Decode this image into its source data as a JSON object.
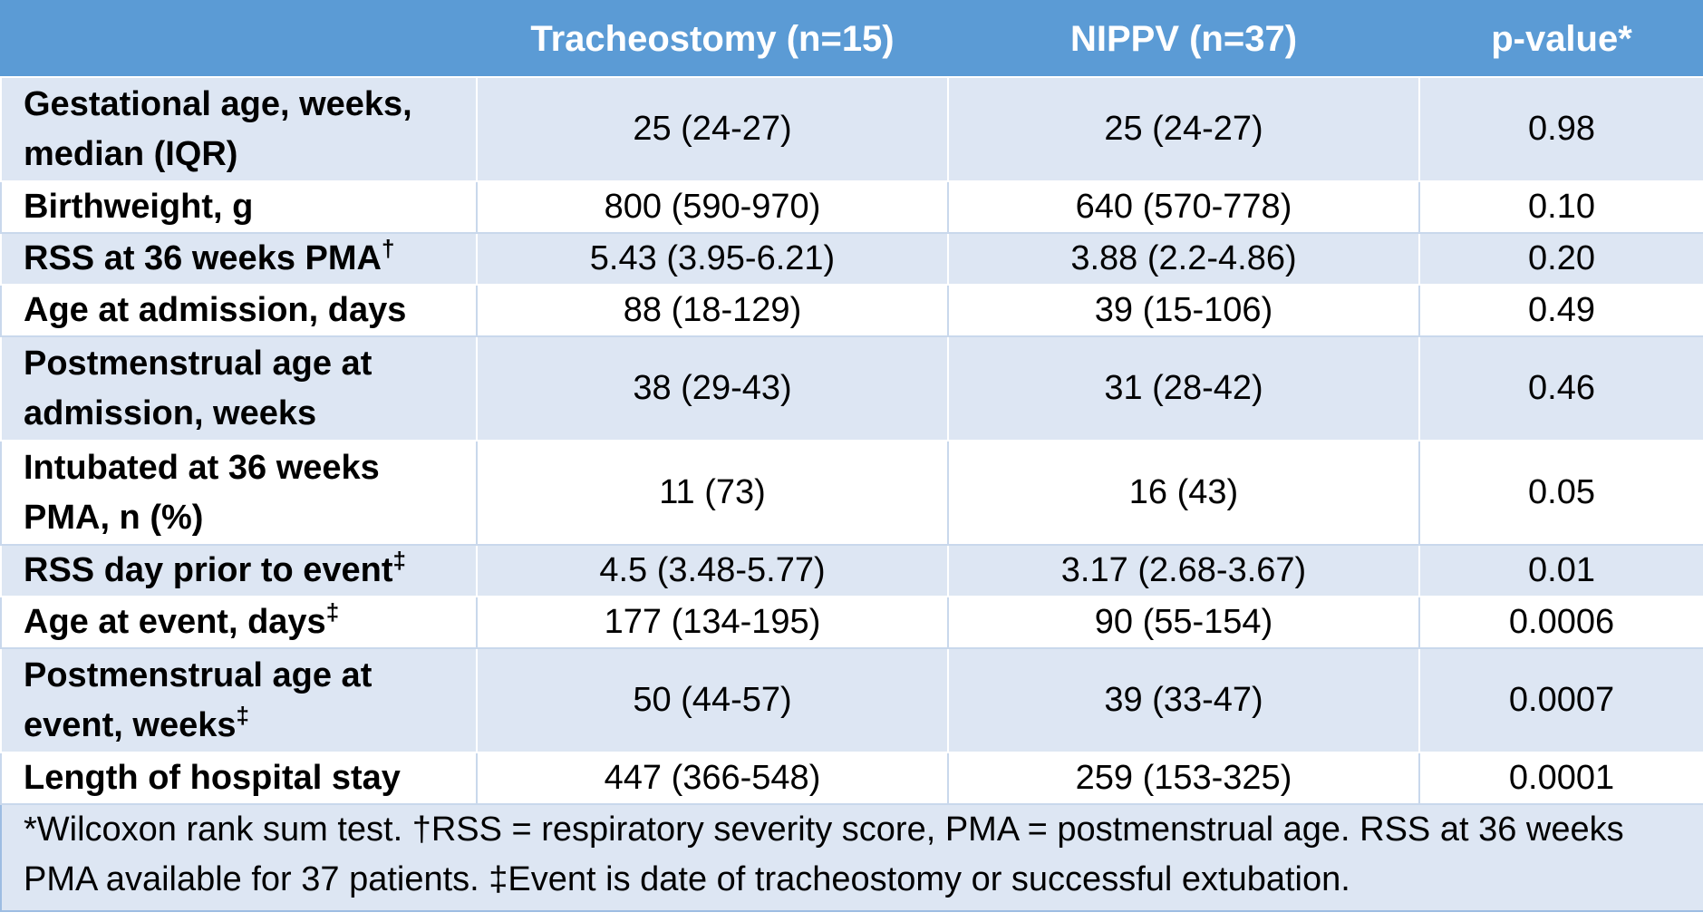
{
  "header": {
    "col0": "",
    "col1": "Tracheostomy (n=15)",
    "col2": "NIPPV (n=37)",
    "col3": "p-value*"
  },
  "rows": [
    {
      "label": "Gestational age, weeks, median (IQR)",
      "sup": "",
      "trach": "25 (24-27)",
      "nippv": "25 (24-27)",
      "p": "0.98"
    },
    {
      "label": "Birthweight, g",
      "sup": "",
      "trach": "800 (590-970)",
      "nippv": "640 (570-778)",
      "p": "0.10"
    },
    {
      "label": "RSS at 36 weeks PMA",
      "sup": "†",
      "trach": "5.43 (3.95-6.21)",
      "nippv": "3.88 (2.2-4.86)",
      "p": "0.20"
    },
    {
      "label": "Age at admission, days",
      "sup": "",
      "trach": "88 (18-129)",
      "nippv": "39 (15-106)",
      "p": "0.49"
    },
    {
      "label": "Postmenstrual age at admission, weeks",
      "sup": "",
      "trach": "38 (29-43)",
      "nippv": "31 (28-42)",
      "p": "0.46"
    },
    {
      "label": "Intubated at 36 weeks PMA, n (%)",
      "sup": "",
      "trach": "11 (73)",
      "nippv": "16 (43)",
      "p": "0.05"
    },
    {
      "label": "RSS day prior to event",
      "sup": "‡",
      "trach": "4.5 (3.48-5.77)",
      "nippv": "3.17 (2.68-3.67)",
      "p": "0.01"
    },
    {
      "label": "Age at event, days",
      "sup": "‡",
      "trach": "177 (134-195)",
      "nippv": "90 (55-154)",
      "p": "0.0006"
    },
    {
      "label": "Postmenstrual age at event, weeks",
      "sup": "‡",
      "trach": "50 (44-57)",
      "nippv": "39 (33-47)",
      "p": "0.0007"
    },
    {
      "label": "Length of hospital stay",
      "sup": "",
      "trach": "447 (366-548)",
      "nippv": "259 (153-325)",
      "p": "0.0001"
    }
  ],
  "footnote": "*Wilcoxon rank sum test. †RSS = respiratory severity score, PMA = postmenstrual age. RSS at 36 weeks PMA available for 37 patients. ‡Event is date of tracheostomy or successful extubation.",
  "colors": {
    "header_bg": "#5b9bd5",
    "band_bg": "#dde6f3",
    "plain_bg": "#ffffff"
  }
}
